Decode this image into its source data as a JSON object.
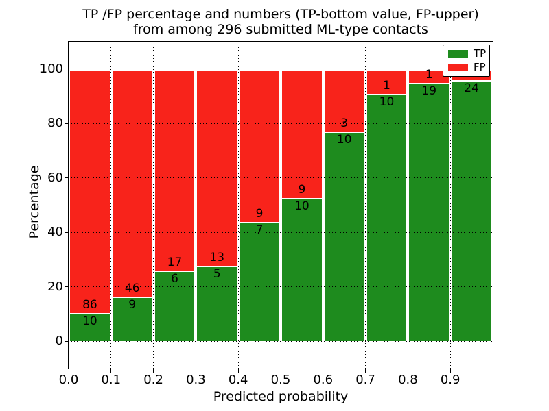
{
  "title": {
    "line1": "TP /FP percentage and numbers (TP-bottom value, FP-upper)",
    "line2": "from among 296 submitted ML-type contacts"
  },
  "axes": {
    "x_label": "Predicted probability",
    "y_label": "Percentage"
  },
  "legend": {
    "position": "upper right",
    "items": [
      {
        "label": "TP",
        "color": "#1e8b1e"
      },
      {
        "label": "FP",
        "color": "#f8231b"
      }
    ]
  },
  "colors": {
    "tp_green": "#1e8b1e",
    "fp_red": "#f8231b",
    "background": "#ffffff",
    "grid": "#000000",
    "bar_edge": "#ffffff"
  },
  "chart_data": {
    "type": "bar",
    "stacked": true,
    "normalized_to_percent": true,
    "title": "TP /FP percentage and numbers (TP-bottom value, FP-upper) from among 296 submitted ML-type contacts",
    "xlabel": "Predicted probability",
    "ylabel": "Percentage",
    "total_contacts": 296,
    "bin_edges": [
      0.0,
      0.1,
      0.2,
      0.3,
      0.4,
      0.5,
      0.6,
      0.7,
      0.8,
      0.9,
      1.0
    ],
    "series": [
      {
        "name": "TP",
        "color": "#1e8b1e",
        "counts": [
          10,
          9,
          6,
          5,
          7,
          10,
          10,
          10,
          19,
          24
        ]
      },
      {
        "name": "FP",
        "color": "#f8231b",
        "counts": [
          86,
          46,
          17,
          13,
          9,
          9,
          3,
          1,
          1,
          1
        ]
      }
    ],
    "tp_percent_by_bin": [
      10.4,
      16.4,
      26.1,
      27.8,
      43.8,
      52.6,
      76.9,
      90.9,
      95.0,
      96.0
    ],
    "xlim": [
      0,
      1
    ],
    "ylim": [
      -10,
      110
    ],
    "x_ticks": [
      "0.0",
      "0.1",
      "0.2",
      "0.3",
      "0.4",
      "0.5",
      "0.6",
      "0.7",
      "0.8",
      "0.9"
    ],
    "y_ticks": [
      0,
      20,
      40,
      60,
      80,
      100
    ],
    "grid": "dotted",
    "legend_position": "upper right"
  }
}
